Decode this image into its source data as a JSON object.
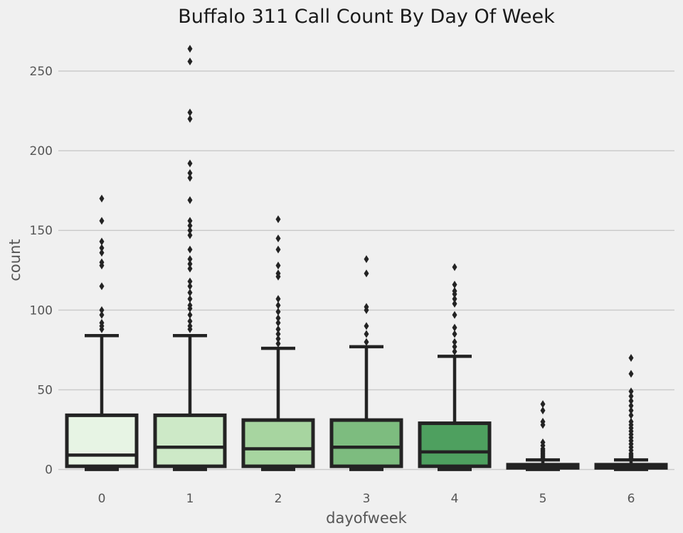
{
  "chart_data": {
    "type": "box",
    "title": "Buffalo 311 Call Count By Day Of Week",
    "xlabel": "dayofweek",
    "ylabel": "count",
    "ylim": [
      -2,
      272
    ],
    "yticks": [
      0,
      50,
      100,
      150,
      200,
      250
    ],
    "grid": "y",
    "colors": {
      "background": "#f0f0f0",
      "grid": "#cbcbcb",
      "edge": "#232323",
      "text": "#555555",
      "title": "#1a1a1a"
    },
    "boxes": [
      {
        "category": "0",
        "fill": "#e7f4e4",
        "whisker_low": 0,
        "q1": 2,
        "median": 9,
        "q3": 34,
        "whisker_high": 84,
        "outliers": [
          88,
          90,
          92,
          97,
          100,
          115,
          128,
          130,
          136,
          139,
          143,
          156,
          170
        ]
      },
      {
        "category": "1",
        "fill": "#cde9c7",
        "whisker_low": 0,
        "q1": 2,
        "median": 14,
        "q3": 34,
        "whisker_high": 84,
        "outliers": [
          88,
          90,
          93,
          97,
          101,
          103,
          107,
          111,
          115,
          118,
          126,
          129,
          132,
          138,
          147,
          150,
          153,
          156,
          169,
          183,
          186,
          192,
          220,
          224,
          256,
          264
        ]
      },
      {
        "category": "2",
        "fill": "#a7d5a0",
        "whisker_low": 0,
        "q1": 2,
        "median": 13,
        "q3": 31,
        "whisker_high": 76,
        "outliers": [
          79,
          82,
          85,
          88,
          92,
          95,
          99,
          103,
          107,
          121,
          123,
          128,
          138,
          145,
          157
        ]
      },
      {
        "category": "3",
        "fill": "#7dbc7f",
        "whisker_low": 0,
        "q1": 2,
        "median": 14,
        "q3": 31,
        "whisker_high": 77,
        "outliers": [
          80,
          85,
          90,
          100,
          102,
          123,
          132
        ]
      },
      {
        "category": "4",
        "fill": "#4ea05f",
        "whisker_low": 0,
        "q1": 2,
        "median": 11,
        "q3": 29,
        "whisker_high": 71,
        "outliers": [
          74,
          77,
          80,
          85,
          89,
          97,
          104,
          107,
          110,
          112,
          116,
          127
        ]
      },
      {
        "category": "5",
        "fill": "#2d8a4a",
        "whisker_low": 0,
        "q1": 1,
        "median": 2,
        "q3": 3,
        "whisker_high": 6,
        "outliers": [
          7,
          8,
          9,
          10,
          11,
          12,
          13,
          15,
          17,
          28,
          30,
          37,
          41
        ]
      },
      {
        "category": "6",
        "fill": "#1e6e3a",
        "whisker_low": 0,
        "q1": 1,
        "median": 2,
        "q3": 3,
        "whisker_high": 6,
        "outliers": [
          7,
          8,
          9,
          10,
          12,
          14,
          16,
          18,
          20,
          22,
          24,
          26,
          28,
          30,
          34,
          37,
          40,
          43,
          46,
          49,
          60,
          70
        ]
      }
    ]
  }
}
